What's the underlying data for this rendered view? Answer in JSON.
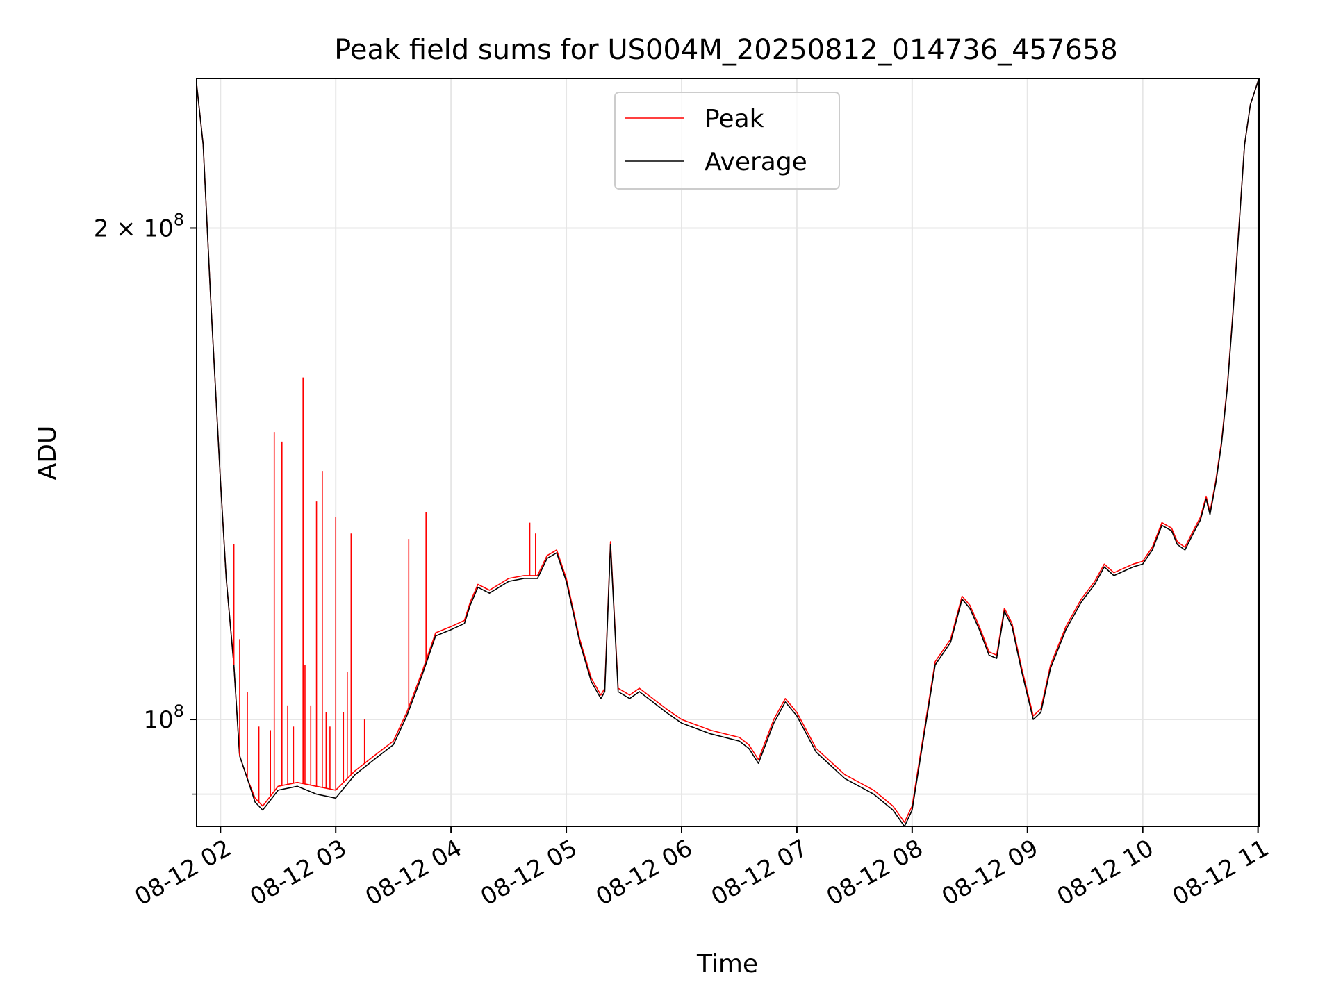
{
  "figure": {
    "background": "#ffffff"
  },
  "chart_data": {
    "type": "line",
    "title": "Peak field sums for US004M_20250812_014736_457658",
    "xlabel": "Time",
    "ylabel": "ADU",
    "yscale": "log",
    "ylim": [
      86000000,
      247000000
    ],
    "xlim": [
      "2025-08-12 01:47:36",
      "2025-08-12 11:00:30"
    ],
    "grid": true,
    "grid_color": "#e6e6e6",
    "legend_position": "top-center",
    "x_ticks": [
      {
        "time": "2025-08-12 02:00",
        "label": "08-12 02"
      },
      {
        "time": "2025-08-12 03:00",
        "label": "08-12 03"
      },
      {
        "time": "2025-08-12 04:00",
        "label": "08-12 04"
      },
      {
        "time": "2025-08-12 05:00",
        "label": "08-12 05"
      },
      {
        "time": "2025-08-12 06:00",
        "label": "08-12 06"
      },
      {
        "time": "2025-08-12 07:00",
        "label": "08-12 07"
      },
      {
        "time": "2025-08-12 08:00",
        "label": "08-12 08"
      },
      {
        "time": "2025-08-12 09:00",
        "label": "08-12 09"
      },
      {
        "time": "2025-08-12 10:00",
        "label": "08-12 10"
      },
      {
        "time": "2025-08-12 11:00",
        "label": "08-12 11"
      }
    ],
    "y_ticks": [
      {
        "value": 100000000,
        "base": "10",
        "exp": "8"
      },
      {
        "value": 200000000,
        "base": "2 × 10",
        "exp": "8"
      }
    ],
    "y_minor_ticks": [
      90000000
    ],
    "series": [
      {
        "name": "Peak",
        "color": "#ff0000",
        "x": [
          "2025-08-12 01:47:36",
          "2025-08-12 01:51",
          "2025-08-12 01:55",
          "2025-08-12 02:00",
          "2025-08-12 02:03",
          "2025-08-12 02:07",
          "2025-08-12 02:10",
          "2025-08-12 02:14",
          "2025-08-12 02:18",
          "2025-08-12 02:22",
          "2025-08-12 02:30",
          "2025-08-12 02:40",
          "2025-08-12 02:50",
          "2025-08-12 03:00",
          "2025-08-12 03:10",
          "2025-08-12 03:20",
          "2025-08-12 03:30",
          "2025-08-12 03:37",
          "2025-08-12 03:45",
          "2025-08-12 03:52",
          "2025-08-12 04:00",
          "2025-08-12 04:07",
          "2025-08-12 04:10",
          "2025-08-12 04:14",
          "2025-08-12 04:20",
          "2025-08-12 04:30",
          "2025-08-12 04:38",
          "2025-08-12 04:45",
          "2025-08-12 04:50",
          "2025-08-12 04:55",
          "2025-08-12 05:00",
          "2025-08-12 05:07",
          "2025-08-12 05:13",
          "2025-08-12 05:18",
          "2025-08-12 05:20",
          "2025-08-12 05:23",
          "2025-08-12 05:27",
          "2025-08-12 05:33",
          "2025-08-12 05:38",
          "2025-08-12 05:45",
          "2025-08-12 05:52",
          "2025-08-12 06:00",
          "2025-08-12 06:15",
          "2025-08-12 06:30",
          "2025-08-12 06:35",
          "2025-08-12 06:40",
          "2025-08-12 06:48",
          "2025-08-12 06:54",
          "2025-08-12 07:00",
          "2025-08-12 07:10",
          "2025-08-12 07:25",
          "2025-08-12 07:40",
          "2025-08-12 07:50",
          "2025-08-12 07:56",
          "2025-08-12 08:00",
          "2025-08-12 08:06",
          "2025-08-12 08:12",
          "2025-08-12 08:20",
          "2025-08-12 08:26",
          "2025-08-12 08:30",
          "2025-08-12 08:35",
          "2025-08-12 08:40",
          "2025-08-12 08:44",
          "2025-08-12 08:48",
          "2025-08-12 08:52",
          "2025-08-12 08:57",
          "2025-08-12 09:03",
          "2025-08-12 09:07",
          "2025-08-12 09:12",
          "2025-08-12 09:20",
          "2025-08-12 09:28",
          "2025-08-12 09:35",
          "2025-08-12 09:40",
          "2025-08-12 09:45",
          "2025-08-12 09:55",
          "2025-08-12 10:00",
          "2025-08-12 10:05",
          "2025-08-12 10:10",
          "2025-08-12 10:15",
          "2025-08-12 10:18",
          "2025-08-12 10:22",
          "2025-08-12 10:27",
          "2025-08-12 10:30",
          "2025-08-12 10:33",
          "2025-08-12 10:35",
          "2025-08-12 10:38",
          "2025-08-12 10:41",
          "2025-08-12 10:44",
          "2025-08-12 10:47",
          "2025-08-12 10:50",
          "2025-08-12 10:53",
          "2025-08-12 10:56",
          "2025-08-12 11:00"
        ],
        "y": [
          245000000,
          225000000,
          180000000,
          140000000,
          122000000,
          108000000,
          95000000,
          92000000,
          89500000,
          88500000,
          91000000,
          91500000,
          91000000,
          90500000,
          93000000,
          95000000,
          97000000,
          101000000,
          107000000,
          113000000,
          114000000,
          115000000,
          118000000,
          121000000,
          120000000,
          122000000,
          122500000,
          122500000,
          126000000,
          127000000,
          122000000,
          112000000,
          106000000,
          103500000,
          104500000,
          128500000,
          104500000,
          103500000,
          104500000,
          103000000,
          101500000,
          100000000,
          98500000,
          97500000,
          96500000,
          94500000,
          100000000,
          103000000,
          101000000,
          96000000,
          92500000,
          90500000,
          88500000,
          86500000,
          88500000,
          98000000,
          108500000,
          112000000,
          119000000,
          117500000,
          114000000,
          110000000,
          109500000,
          117000000,
          114500000,
          107500000,
          100500000,
          101500000,
          108000000,
          114000000,
          118500000,
          121500000,
          124500000,
          123000000,
          124500000,
          125000000,
          127500000,
          132000000,
          131000000,
          128500000,
          127500000,
          131000000,
          133000000,
          137000000,
          134000000,
          140000000,
          148000000,
          160000000,
          178000000,
          200000000,
          225000000,
          238000000,
          246000000
        ]
      },
      {
        "name": "Average",
        "color": "#000000",
        "x": [
          "2025-08-12 01:47:36",
          "2025-08-12 01:51",
          "2025-08-12 01:55",
          "2025-08-12 02:00",
          "2025-08-12 02:03",
          "2025-08-12 02:07",
          "2025-08-12 02:10",
          "2025-08-12 02:14",
          "2025-08-12 02:18",
          "2025-08-12 02:22",
          "2025-08-12 02:30",
          "2025-08-12 02:40",
          "2025-08-12 02:50",
          "2025-08-12 03:00",
          "2025-08-12 03:10",
          "2025-08-12 03:20",
          "2025-08-12 03:30",
          "2025-08-12 03:37",
          "2025-08-12 03:45",
          "2025-08-12 03:52",
          "2025-08-12 04:00",
          "2025-08-12 04:07",
          "2025-08-12 04:10",
          "2025-08-12 04:14",
          "2025-08-12 04:20",
          "2025-08-12 04:30",
          "2025-08-12 04:38",
          "2025-08-12 04:45",
          "2025-08-12 04:50",
          "2025-08-12 04:55",
          "2025-08-12 05:00",
          "2025-08-12 05:07",
          "2025-08-12 05:13",
          "2025-08-12 05:18",
          "2025-08-12 05:20",
          "2025-08-12 05:23",
          "2025-08-12 05:27",
          "2025-08-12 05:33",
          "2025-08-12 05:38",
          "2025-08-12 05:45",
          "2025-08-12 05:52",
          "2025-08-12 06:00",
          "2025-08-12 06:15",
          "2025-08-12 06:30",
          "2025-08-12 06:35",
          "2025-08-12 06:40",
          "2025-08-12 06:48",
          "2025-08-12 06:54",
          "2025-08-12 07:00",
          "2025-08-12 07:10",
          "2025-08-12 07:25",
          "2025-08-12 07:40",
          "2025-08-12 07:50",
          "2025-08-12 07:56",
          "2025-08-12 08:00",
          "2025-08-12 08:06",
          "2025-08-12 08:12",
          "2025-08-12 08:20",
          "2025-08-12 08:26",
          "2025-08-12 08:30",
          "2025-08-12 08:35",
          "2025-08-12 08:40",
          "2025-08-12 08:44",
          "2025-08-12 08:48",
          "2025-08-12 08:52",
          "2025-08-12 08:57",
          "2025-08-12 09:03",
          "2025-08-12 09:07",
          "2025-08-12 09:12",
          "2025-08-12 09:20",
          "2025-08-12 09:28",
          "2025-08-12 09:35",
          "2025-08-12 09:40",
          "2025-08-12 09:45",
          "2025-08-12 09:55",
          "2025-08-12 10:00",
          "2025-08-12 10:05",
          "2025-08-12 10:10",
          "2025-08-12 10:15",
          "2025-08-12 10:18",
          "2025-08-12 10:22",
          "2025-08-12 10:27",
          "2025-08-12 10:30",
          "2025-08-12 10:33",
          "2025-08-12 10:35",
          "2025-08-12 10:38",
          "2025-08-12 10:41",
          "2025-08-12 10:44",
          "2025-08-12 10:47",
          "2025-08-12 10:50",
          "2025-08-12 10:53",
          "2025-08-12 10:56",
          "2025-08-12 11:00"
        ],
        "y": [
          245000000,
          225000000,
          180000000,
          140000000,
          122000000,
          108000000,
          95000000,
          92000000,
          89000000,
          88000000,
          90500000,
          91000000,
          90000000,
          89500000,
          92500000,
          94500000,
          96500000,
          100500000,
          106500000,
          112500000,
          113500000,
          114500000,
          117500000,
          120500000,
          119500000,
          121500000,
          122000000,
          122000000,
          125500000,
          126500000,
          121500000,
          111500000,
          105500000,
          103000000,
          104000000,
          128000000,
          104000000,
          103000000,
          104000000,
          102500000,
          101000000,
          99500000,
          98000000,
          97000000,
          96000000,
          94000000,
          99500000,
          102500000,
          100500000,
          95500000,
          92000000,
          90000000,
          88000000,
          86000000,
          88000000,
          97500000,
          108000000,
          111500000,
          118500000,
          117000000,
          113500000,
          109500000,
          109000000,
          116500000,
          114000000,
          107000000,
          100000000,
          101000000,
          107500000,
          113500000,
          118000000,
          121000000,
          124000000,
          122500000,
          124000000,
          124500000,
          127000000,
          131500000,
          130500000,
          128000000,
          127000000,
          130500000,
          132500000,
          136500000,
          133500000,
          139500000,
          147500000,
          159500000,
          177500000,
          199500000,
          225000000,
          238000000,
          246000000
        ]
      }
    ],
    "peak_spikes": [
      {
        "x": "2025-08-12 02:07",
        "y": 128000000
      },
      {
        "x": "2025-08-12 02:10",
        "y": 112000000
      },
      {
        "x": "2025-08-12 02:14",
        "y": 104000000
      },
      {
        "x": "2025-08-12 02:20",
        "y": 99000000
      },
      {
        "x": "2025-08-12 02:26",
        "y": 98500000
      },
      {
        "x": "2025-08-12 02:28",
        "y": 150000000
      },
      {
        "x": "2025-08-12 02:32",
        "y": 148000000
      },
      {
        "x": "2025-08-12 02:35",
        "y": 102000000
      },
      {
        "x": "2025-08-12 02:38",
        "y": 99000000
      },
      {
        "x": "2025-08-12 02:43",
        "y": 162000000
      },
      {
        "x": "2025-08-12 02:44",
        "y": 108000000
      },
      {
        "x": "2025-08-12 02:47",
        "y": 102000000
      },
      {
        "x": "2025-08-12 02:50",
        "y": 136000000
      },
      {
        "x": "2025-08-12 02:53",
        "y": 142000000
      },
      {
        "x": "2025-08-12 02:55",
        "y": 101000000
      },
      {
        "x": "2025-08-12 02:57",
        "y": 99000000
      },
      {
        "x": "2025-08-12 03:00",
        "y": 133000000
      },
      {
        "x": "2025-08-12 03:04",
        "y": 101000000
      },
      {
        "x": "2025-08-12 03:06",
        "y": 107000000
      },
      {
        "x": "2025-08-12 03:08",
        "y": 130000000
      },
      {
        "x": "2025-08-12 03:15",
        "y": 100000000
      },
      {
        "x": "2025-08-12 03:38",
        "y": 129000000
      },
      {
        "x": "2025-08-12 03:47",
        "y": 134000000
      },
      {
        "x": "2025-08-12 04:41",
        "y": 132000000
      },
      {
        "x": "2025-08-12 04:44",
        "y": 130000000
      }
    ]
  }
}
